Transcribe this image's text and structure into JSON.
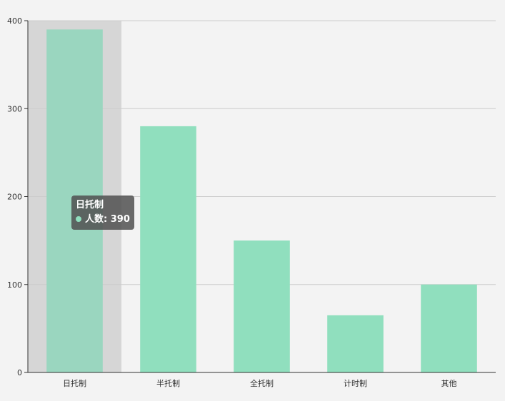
{
  "chart_data": {
    "type": "bar",
    "categories": [
      "日托制",
      "半托制",
      "全托制",
      "计时制",
      "其他"
    ],
    "series": [
      {
        "name": "人数",
        "values": [
          390,
          280,
          150,
          65,
          100
        ]
      }
    ],
    "ylim": [
      0,
      400
    ],
    "yticks": [
      0,
      100,
      200,
      300,
      400
    ],
    "grid": true,
    "highlighted_index": 0
  },
  "tooltip": {
    "title": "日托制",
    "series_label": "人数",
    "value": "390",
    "text": "人数: 390"
  },
  "colors": {
    "bar": "#90dfbe",
    "bar_highlight": "#9ad6bf",
    "highlight_band": "#d6d6d6",
    "grid": "#cccccc",
    "axis": "#333333",
    "background": "#f3f3f3"
  }
}
